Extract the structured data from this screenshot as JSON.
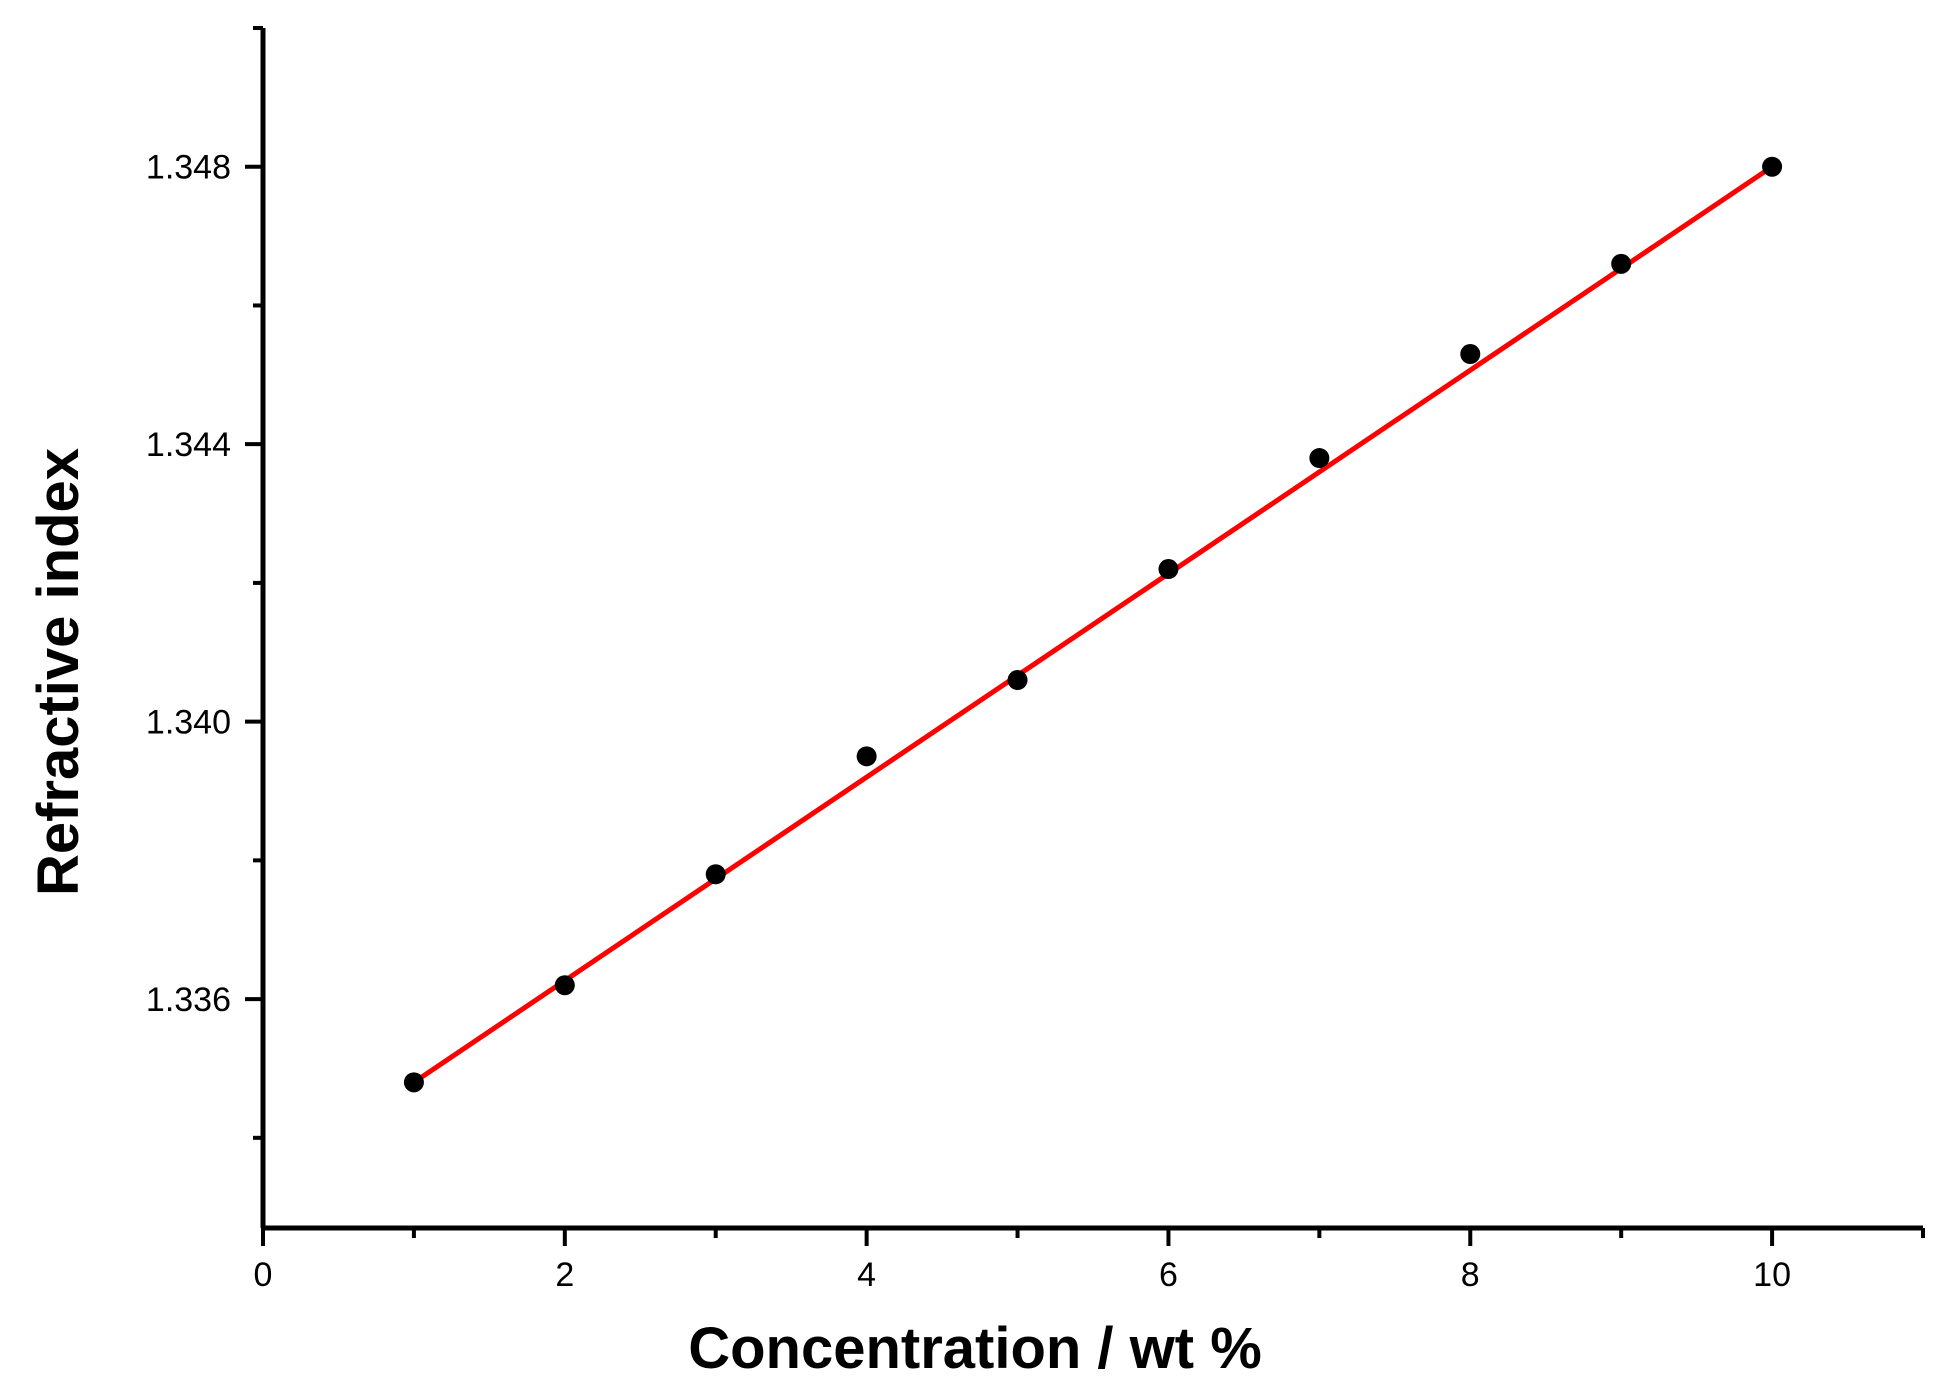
{
  "chart_data": {
    "type": "scatter",
    "title": "",
    "xlabel": "Concentration / wt %",
    "ylabel": "Refractive index",
    "xlim": [
      0,
      11
    ],
    "ylim": [
      1.3327,
      1.35
    ],
    "x_ticks": [
      0,
      2,
      4,
      6,
      8,
      10
    ],
    "x_tick_labels": [
      "0",
      "2",
      "4",
      "6",
      "8",
      "10"
    ],
    "x_minor_ticks": [
      1,
      3,
      5,
      7,
      9,
      11
    ],
    "y_ticks": [
      1.336,
      1.34,
      1.344,
      1.348
    ],
    "y_tick_labels": [
      "1.336",
      "1.340",
      "1.344",
      "1.348"
    ],
    "y_minor_ticks": [
      1.334,
      1.338,
      1.342,
      1.346,
      1.35
    ],
    "grid": false,
    "legend": "none",
    "series": [
      {
        "kind": "points",
        "color": "#000000",
        "x": [
          1,
          2,
          3,
          4,
          5,
          6,
          7,
          8,
          9,
          10
        ],
        "y": [
          1.3348,
          1.3362,
          1.3378,
          1.3395,
          1.3406,
          1.3422,
          1.3438,
          1.3453,
          1.3466,
          1.348
        ]
      },
      {
        "kind": "fit-line",
        "color": "#ff0000",
        "x": [
          1,
          10
        ],
        "y": [
          1.3348,
          1.348
        ]
      }
    ]
  }
}
